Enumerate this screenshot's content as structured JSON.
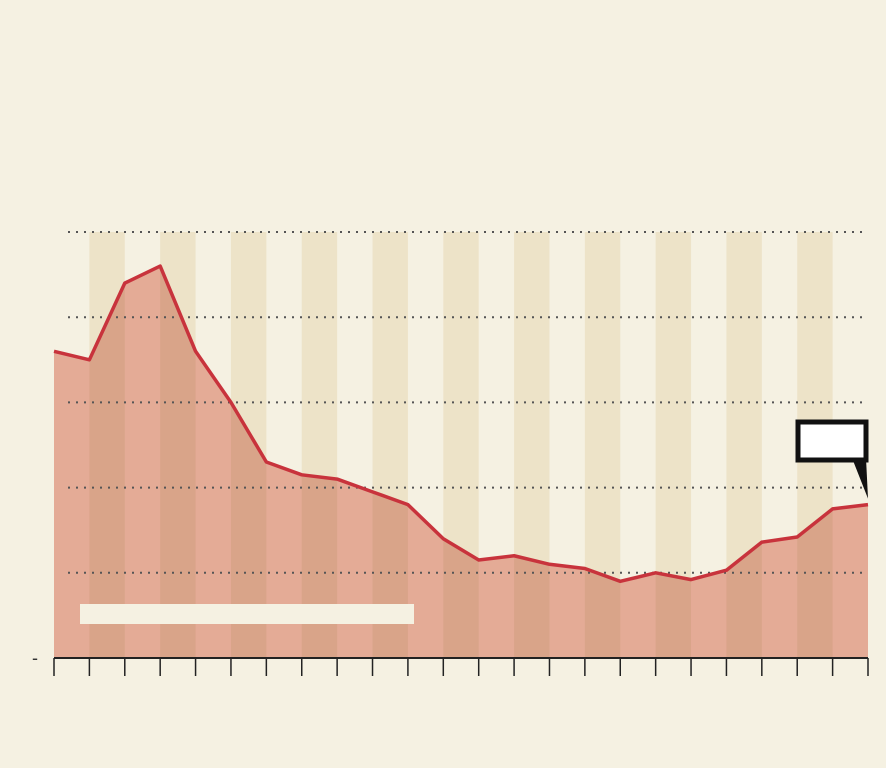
{
  "header": {
    "title": "",
    "subtitle": ""
  },
  "footer": {
    "source": ""
  },
  "colors": {
    "background": "#f5f1e2",
    "band": "#ede3c8",
    "area_fill": "#e4ab96",
    "area_band_fill": "#d9a489",
    "line": "#c8333c",
    "grid": "#555555",
    "axis": "#222222"
  },
  "chart_data": {
    "type": "area",
    "title": "",
    "xlabel": "",
    "ylabel": "",
    "x": [
      0,
      1,
      2,
      3,
      4,
      5,
      6,
      7,
      8,
      9,
      10,
      11,
      12,
      13,
      14,
      15,
      16,
      17,
      18,
      19,
      20,
      21,
      22,
      23
    ],
    "series": [
      {
        "name": "",
        "values": [
          3.6,
          3.5,
          4.4,
          4.6,
          3.6,
          3.0,
          2.3,
          2.15,
          2.1,
          1.95,
          1.8,
          1.4,
          1.15,
          1.2,
          1.1,
          1.05,
          0.9,
          1.0,
          0.92,
          1.03,
          1.36,
          1.42,
          1.75,
          1.8
        ]
      }
    ],
    "ylim": [
      0,
      5
    ],
    "yticks": [
      0,
      1,
      2,
      3,
      4,
      5
    ],
    "ytick_labels": [
      "-",
      "",
      "",
      "",
      "",
      ""
    ],
    "grid": true,
    "alternating_bands": true,
    "callout": {
      "text": "",
      "at_index": 23
    },
    "inner_label": ""
  }
}
